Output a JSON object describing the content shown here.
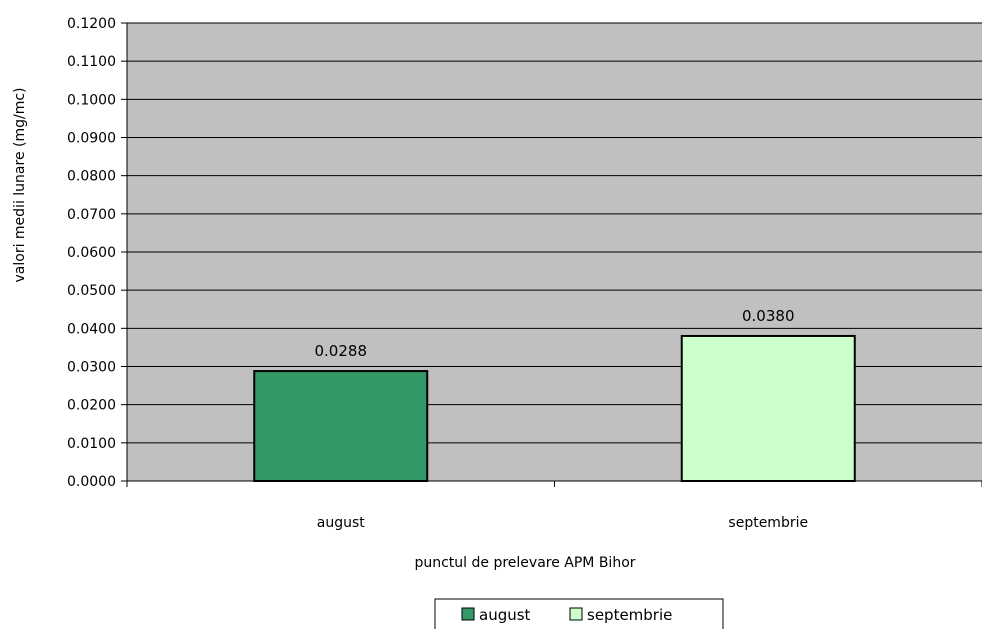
{
  "chart_data": {
    "type": "bar",
    "categories": [
      "august",
      "septembrie"
    ],
    "values": [
      0.0288,
      0.038
    ],
    "value_labels": [
      "0.0288",
      "0.0380"
    ],
    "colors": [
      "#339966",
      "#ccffcc"
    ],
    "title": "",
    "xlabel": "punctul de prelevare APM Bihor",
    "ylabel": "valori medii lunare (mg/mc)",
    "ylim": [
      0,
      0.12
    ],
    "ytick_step": 0.01,
    "ytick_labels": [
      "0.0000",
      "0.0100",
      "0.0200",
      "0.0300",
      "0.0400",
      "0.0500",
      "0.0600",
      "0.0700",
      "0.0800",
      "0.0900",
      "0.1000",
      "0.1100",
      "0.1200"
    ],
    "grid": true,
    "plot_background": "#c0c0c0",
    "legend": {
      "placement": "bottom",
      "entries": [
        "august",
        "septembrie"
      ]
    }
  }
}
